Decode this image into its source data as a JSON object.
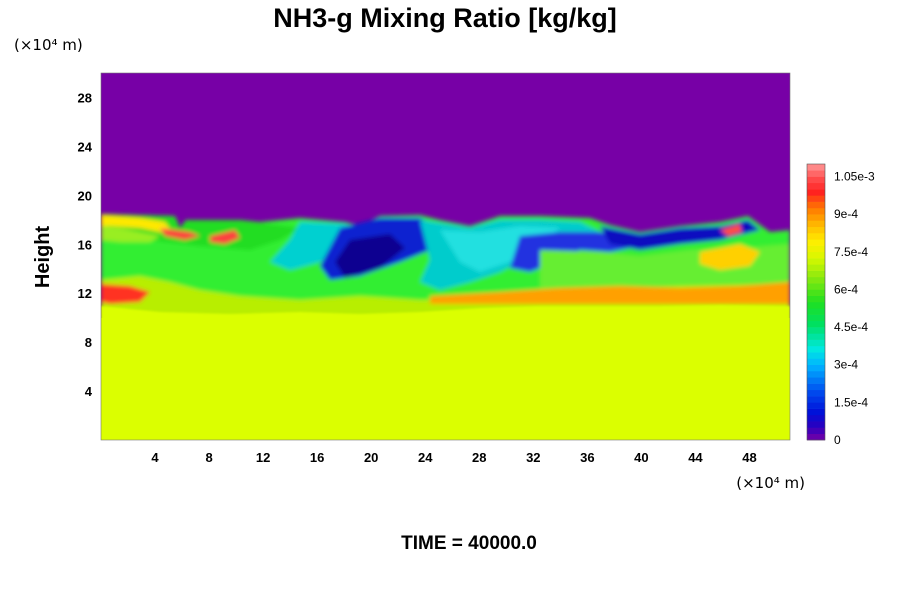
{
  "chart_data": {
    "type": "heatmap",
    "title": "NH3-g Mixing Ratio [kg/kg]",
    "ylabel": "Height",
    "x_unit_label": "(×10⁴ m)",
    "y_unit_label": "(×10⁴ m)",
    "x_ticks": [
      "4",
      "8",
      "12",
      "16",
      "20",
      "24",
      "28",
      "32",
      "36",
      "40",
      "44",
      "48"
    ],
    "y_ticks": [
      "4",
      "8",
      "12",
      "16",
      "20",
      "24",
      "28"
    ],
    "xlim": [
      0,
      51
    ],
    "ylim": [
      0,
      30
    ],
    "colorbar": {
      "min": 0,
      "max": 0.0011,
      "tick_labels": [
        "0",
        "1.5e-4",
        "3e-4",
        "4.5e-4",
        "6e-4",
        "7.5e-4",
        "9e-4",
        "1.05e-3"
      ],
      "tick_values": [
        0,
        0.00015,
        0.0003,
        0.00045,
        0.0006,
        0.00075,
        0.0009,
        0.00105
      ]
    },
    "annotation": "TIME = 40000.0",
    "fields": {
      "lower_value": 0.00077,
      "upper_value": 0.0,
      "lower_region_top_height": 10.5,
      "upper_region_bottom_height": 17.8
    }
  }
}
